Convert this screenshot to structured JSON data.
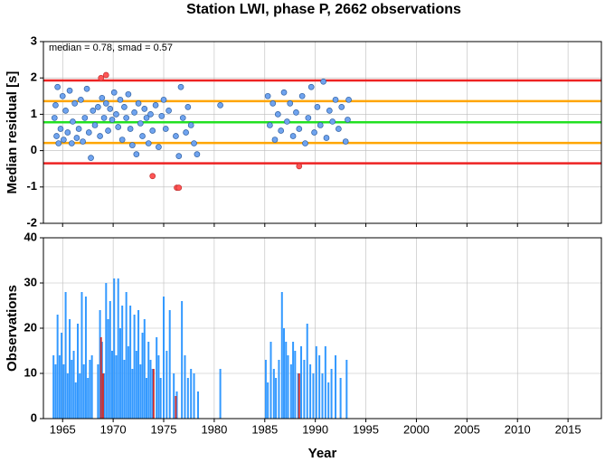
{
  "chart_data": [
    {
      "type": "scatter",
      "title": "Station LWI, phase P, 2662 observations",
      "annotation": "median = 0.78, smad = 0.57",
      "ylabel": "Median residual [s]",
      "xlim": [
        1963.1,
        2018.3
      ],
      "ylim": [
        -2,
        3
      ],
      "yticks": [
        -2,
        -1,
        0,
        1,
        2,
        3
      ],
      "xticks": [
        1965,
        1970,
        1975,
        1980,
        1985,
        1990,
        1995,
        2000,
        2005,
        2010,
        2015
      ],
      "grid": true,
      "hlines": [
        {
          "value": 1.93,
          "color": "#ee2222"
        },
        {
          "value": 1.36,
          "color": "#ffa500"
        },
        {
          "value": 0.78,
          "color": "#22e022"
        },
        {
          "value": 0.21,
          "color": "#ffa500"
        },
        {
          "value": -0.35,
          "color": "#ee2222"
        }
      ],
      "series": [
        {
          "color": "#6fa3ef",
          "x": [
            1964.2,
            1964.3,
            1964.4,
            1964.5,
            1964.6,
            1964.8,
            1965.0,
            1965.1,
            1965.3,
            1965.5,
            1965.7,
            1965.9,
            1966.0,
            1966.2,
            1966.4,
            1966.6,
            1966.8,
            1967.0,
            1967.2,
            1967.4,
            1967.6,
            1967.8,
            1968.0,
            1968.2,
            1968.5,
            1968.7,
            1968.9,
            1969.1,
            1969.3,
            1969.5,
            1969.7,
            1969.9,
            1970.1,
            1970.3,
            1970.5,
            1970.7,
            1970.9,
            1971.1,
            1971.3,
            1971.5,
            1971.7,
            1971.9,
            1972.1,
            1972.3,
            1972.5,
            1972.7,
            1972.9,
            1973.1,
            1973.3,
            1973.5,
            1973.7,
            1973.9,
            1974.2,
            1974.5,
            1974.8,
            1975.0,
            1975.2,
            1975.5,
            1976.2,
            1976.5,
            1976.7,
            1976.9,
            1977.2,
            1977.4,
            1977.7,
            1978.0,
            1978.3,
            1980.6,
            1985.3,
            1985.5,
            1985.8,
            1986.0,
            1986.3,
            1986.6,
            1986.9,
            1987.2,
            1987.5,
            1987.8,
            1988.1,
            1988.4,
            1988.7,
            1989.0,
            1989.3,
            1989.6,
            1989.9,
            1990.2,
            1990.5,
            1990.8,
            1991.1,
            1991.4,
            1991.7,
            1992.0,
            1992.3,
            1992.6,
            1993.0,
            1993.2,
            1993.3
          ],
          "values": [
            0.9,
            1.25,
            0.4,
            1.75,
            0.2,
            0.6,
            1.5,
            0.3,
            1.1,
            0.5,
            1.65,
            0.2,
            0.8,
            1.3,
            0.35,
            0.6,
            1.4,
            0.25,
            0.9,
            1.7,
            0.5,
            -0.2,
            1.1,
            0.7,
            1.2,
            0.4,
            1.45,
            0.9,
            1.3,
            0.55,
            1.15,
            0.85,
            1.6,
            1.0,
            0.65,
            1.4,
            0.3,
            1.2,
            0.9,
            1.55,
            0.6,
            0.15,
            1.05,
            -0.1,
            1.3,
            0.75,
            0.4,
            1.15,
            0.9,
            0.2,
            1.0,
            0.55,
            1.25,
            0.1,
            0.95,
            1.4,
            0.6,
            1.1,
            0.4,
            -0.15,
            1.75,
            0.9,
            0.5,
            1.2,
            0.7,
            0.2,
            -0.1,
            1.25,
            1.5,
            0.7,
            1.3,
            0.3,
            1.0,
            0.55,
            1.6,
            0.8,
            1.3,
            0.4,
            1.05,
            0.6,
            1.5,
            0.2,
            0.9,
            1.75,
            0.5,
            1.2,
            0.7,
            1.9,
            0.35,
            1.1,
            0.8,
            1.4,
            0.6,
            1.2,
            0.25,
            0.85,
            1.4
          ]
        },
        {
          "color": "#ff5555",
          "x": [
            1968.8,
            1969.3,
            1973.9,
            1976.3,
            1976.5,
            1988.4
          ],
          "values": [
            2.0,
            2.08,
            -0.7,
            -1.02,
            -1.02,
            -0.43
          ]
        }
      ]
    },
    {
      "type": "bar",
      "ylabel": "Observations",
      "xlabel": "Year",
      "xlim": [
        1963.1,
        2018.3
      ],
      "ylim": [
        0,
        40
      ],
      "yticks": [
        0,
        10,
        20,
        30,
        40
      ],
      "xticks": [
        1965,
        1970,
        1975,
        1980,
        1985,
        1990,
        1995,
        2000,
        2005,
        2010,
        2015
      ],
      "grid": true,
      "series": [
        {
          "color": "#3399ff",
          "x": [
            1964.1,
            1964.3,
            1964.5,
            1964.7,
            1964.9,
            1965.1,
            1965.3,
            1965.5,
            1965.7,
            1965.9,
            1966.1,
            1966.3,
            1966.5,
            1966.7,
            1966.9,
            1967.1,
            1967.3,
            1967.5,
            1967.7,
            1967.9,
            1968.5,
            1968.7,
            1968.9,
            1969.1,
            1969.3,
            1969.5,
            1969.7,
            1969.9,
            1970.1,
            1970.3,
            1970.5,
            1970.7,
            1970.9,
            1971.1,
            1971.3,
            1971.5,
            1971.7,
            1971.9,
            1972.1,
            1972.3,
            1972.5,
            1972.7,
            1972.9,
            1973.1,
            1973.3,
            1973.5,
            1973.7,
            1973.9,
            1974.3,
            1974.5,
            1974.7,
            1975.0,
            1975.3,
            1975.6,
            1976.0,
            1976.3,
            1976.8,
            1977.1,
            1977.4,
            1977.7,
            1978.0,
            1978.4,
            1980.6,
            1985.1,
            1985.3,
            1985.6,
            1985.9,
            1986.1,
            1986.4,
            1986.7,
            1986.9,
            1987.1,
            1987.3,
            1987.6,
            1987.8,
            1988.0,
            1988.3,
            1988.6,
            1988.9,
            1989.2,
            1989.5,
            1989.8,
            1990.1,
            1990.4,
            1990.7,
            1991.0,
            1991.3,
            1991.6,
            1992.0,
            1992.5,
            1993.1
          ],
          "values": [
            14,
            12,
            23,
            14,
            19,
            12,
            28,
            10,
            22,
            13,
            15,
            8,
            21,
            10,
            28,
            12,
            27,
            9,
            13,
            14,
            12,
            24,
            17,
            10,
            30,
            22,
            26,
            15,
            31,
            14,
            31,
            20,
            25,
            13,
            28,
            16,
            25,
            11,
            23,
            15,
            24,
            12,
            19,
            22,
            9,
            17,
            13,
            11,
            18,
            14,
            9,
            27,
            15,
            24,
            10,
            6,
            26,
            14,
            9,
            11,
            10,
            6,
            11,
            13,
            8,
            17,
            11,
            9,
            13,
            28,
            20,
            17,
            14,
            12,
            17,
            15,
            10,
            16,
            13,
            21,
            12,
            10,
            16,
            14,
            10,
            16,
            8,
            11,
            14,
            9,
            13
          ]
        },
        {
          "color": "#cc3333",
          "x": [
            1968.8,
            1969.0,
            1974.0,
            1976.2,
            1988.4
          ],
          "values": [
            18,
            10,
            11,
            5,
            10
          ]
        }
      ]
    }
  ]
}
